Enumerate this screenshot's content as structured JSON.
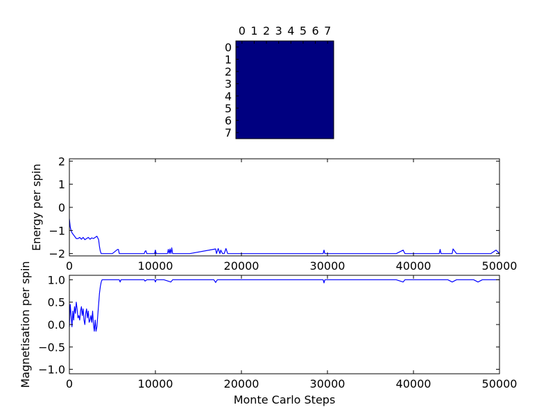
{
  "chart_data": [
    {
      "type": "heatmap",
      "rows": 8,
      "cols": 8,
      "x_ticks": [
        "0",
        "1",
        "2",
        "3",
        "4",
        "5",
        "6",
        "7"
      ],
      "y_ticks": [
        "0",
        "1",
        "2",
        "3",
        "4",
        "5",
        "6",
        "7"
      ],
      "values": [
        [
          1,
          1,
          1,
          1,
          1,
          1,
          1,
          1
        ],
        [
          1,
          1,
          1,
          1,
          1,
          1,
          1,
          1
        ],
        [
          1,
          1,
          1,
          1,
          1,
          1,
          1,
          1
        ],
        [
          1,
          1,
          1,
          1,
          1,
          1,
          1,
          1
        ],
        [
          1,
          1,
          1,
          1,
          1,
          1,
          1,
          1
        ],
        [
          1,
          1,
          1,
          1,
          1,
          1,
          1,
          1
        ],
        [
          1,
          1,
          1,
          1,
          1,
          1,
          1,
          1
        ],
        [
          1,
          1,
          1,
          1,
          1,
          1,
          1,
          1
        ]
      ],
      "cell_color": "#000080",
      "title": "",
      "xlabel": "",
      "ylabel": ""
    },
    {
      "type": "line",
      "title": "",
      "xlabel": "",
      "ylabel": "Energy per spin",
      "xlim": [
        0,
        50000
      ],
      "ylim": [
        -2.1,
        2.1
      ],
      "x_ticks": [
        0,
        10000,
        20000,
        30000,
        40000,
        50000
      ],
      "y_ticks": [
        -2,
        -1,
        0,
        1,
        2
      ],
      "line_color": "#0000ff",
      "grid": false,
      "series": [
        {
          "x": [
            0,
            100,
            200,
            300,
            400,
            600,
            800,
            1000,
            1200,
            1400,
            1600,
            1800,
            2000,
            2200,
            2400,
            2600,
            2800,
            3000,
            3200,
            3400,
            3500,
            3600,
            3700,
            3800,
            4000,
            5000,
            5600,
            5700,
            5800,
            6000,
            7000,
            8700,
            8800,
            8900,
            9000,
            9900,
            10000,
            10100,
            11000,
            11400,
            11500,
            11600,
            11700,
            11800,
            11900,
            12000,
            14000,
            17000,
            17100,
            17300,
            17500,
            17600,
            17800,
            18000,
            18200,
            18400,
            18600,
            20000,
            22000,
            24000,
            25000,
            26000,
            27000,
            28000,
            29500,
            29600,
            29700,
            30000,
            31000,
            32000,
            34000,
            35000,
            37000,
            38000,
            38800,
            39000,
            40000,
            41500,
            42000,
            43000,
            43100,
            43200,
            44000,
            44500,
            44600,
            45000,
            46000,
            47000,
            47500,
            48000,
            49000,
            49600,
            50000
          ],
          "y": [
            -0.5,
            -0.85,
            -1.0,
            -1.1,
            -1.15,
            -1.25,
            -1.35,
            -1.35,
            -1.3,
            -1.38,
            -1.3,
            -1.4,
            -1.35,
            -1.3,
            -1.38,
            -1.32,
            -1.35,
            -1.3,
            -1.25,
            -1.4,
            -1.7,
            -1.9,
            -2,
            -2,
            -2,
            -2,
            -1.82,
            -1.82,
            -2,
            -2,
            -2,
            -2,
            -1.9,
            -1.88,
            -2,
            -2,
            -1.85,
            -2,
            -2,
            -2,
            -1.82,
            -2,
            -1.8,
            -2,
            -1.75,
            -2,
            -2,
            -1.8,
            -2,
            -1.78,
            -2,
            -1.85,
            -2,
            -2,
            -1.78,
            -2,
            -2,
            -2,
            -2,
            -2,
            -2,
            -2,
            -2,
            -2,
            -2,
            -1.85,
            -2,
            -2,
            -2,
            -2,
            -2,
            -2,
            -2,
            -2,
            -1.85,
            -2,
            -2,
            -2,
            -2,
            -2,
            -1.82,
            -2,
            -2,
            -2,
            -1.8,
            -2,
            -2,
            -2,
            -2,
            -2,
            -2,
            -1.85,
            -2
          ]
        }
      ]
    },
    {
      "type": "line",
      "title": "",
      "xlabel": "Monte Carlo Steps",
      "ylabel": "Magnetisation per spin",
      "xlim": [
        0,
        50000
      ],
      "ylim": [
        -1.1,
        1.1
      ],
      "x_ticks": [
        0,
        10000,
        20000,
        30000,
        40000,
        50000
      ],
      "y_ticks": [
        -1.0,
        -0.5,
        0.0,
        0.5,
        1.0
      ],
      "y_tick_labels": [
        "−1.0",
        "−0.5",
        "0.0",
        "0.5",
        "1.0"
      ],
      "line_color": "#0000ff",
      "grid": false,
      "series": [
        {
          "x": [
            0,
            100,
            200,
            300,
            400,
            500,
            600,
            700,
            800,
            900,
            1000,
            1100,
            1200,
            1300,
            1400,
            1500,
            1600,
            1700,
            1800,
            1900,
            2000,
            2100,
            2200,
            2300,
            2400,
            2500,
            2600,
            2700,
            2800,
            2900,
            3000,
            3100,
            3200,
            3300,
            3400,
            3500,
            3600,
            3700,
            3800,
            3900,
            4000,
            5000,
            5800,
            5900,
            6000,
            7000,
            8700,
            8800,
            9000,
            9900,
            10000,
            10100,
            11000,
            11800,
            12000,
            14000,
            16800,
            17000,
            17200,
            18000,
            20000,
            24000,
            27000,
            29500,
            29600,
            29700,
            30000,
            31000,
            33000,
            35000,
            38000,
            38800,
            39000,
            40000,
            41500,
            42000,
            43000,
            44000,
            44500,
            45000,
            46000,
            47000,
            47500,
            48000,
            49000,
            50000
          ],
          "y": [
            -0.05,
            0.45,
            0.2,
            -0.05,
            0.3,
            0.1,
            0.4,
            0.25,
            0.5,
            0.35,
            0.15,
            0.2,
            0.1,
            0.3,
            0.4,
            0.2,
            0.35,
            0.1,
            0.0,
            0.25,
            0.35,
            0.15,
            0.3,
            0.05,
            0.1,
            0.2,
            0.05,
            0.3,
            0.0,
            -0.15,
            0.1,
            -0.15,
            -0.05,
            0.2,
            0.45,
            0.7,
            0.85,
            0.95,
            1.0,
            1.0,
            1.0,
            1.0,
            1.0,
            0.95,
            1.0,
            1.0,
            1.0,
            0.97,
            1.0,
            1.0,
            0.95,
            1.0,
            1.0,
            0.95,
            1.0,
            1.0,
            1.0,
            0.94,
            1.0,
            1.0,
            1.0,
            1.0,
            1.0,
            1.0,
            0.93,
            1.0,
            1.0,
            1.0,
            1.0,
            1.0,
            1.0,
            0.95,
            1.0,
            1.0,
            1.0,
            1.0,
            1.0,
            1.0,
            0.95,
            1.0,
            1.0,
            1.0,
            0.95,
            1.0,
            1.0,
            1.0
          ]
        }
      ]
    }
  ]
}
